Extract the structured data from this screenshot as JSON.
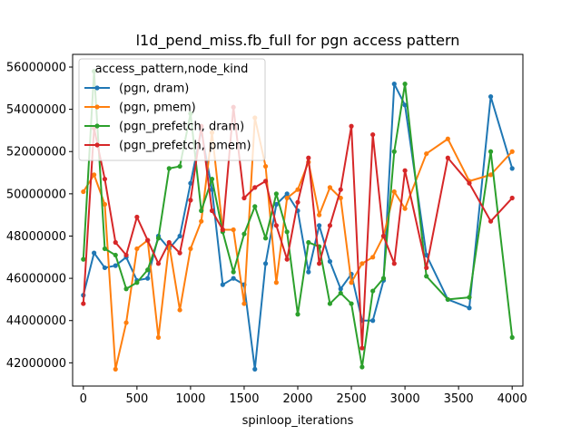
{
  "chart_data": {
    "type": "line",
    "title": "l1d_pend_miss.fb_full for pgn access pattern",
    "xlabel": "spinloop_iterations",
    "ylabel": "",
    "xlim": [
      -100,
      4100
    ],
    "ylim": [
      40900000,
      56600000
    ],
    "xticks": [
      0,
      500,
      1000,
      1500,
      2000,
      2500,
      3000,
      3500,
      4000
    ],
    "yticks": [
      42000000,
      44000000,
      46000000,
      48000000,
      50000000,
      52000000,
      54000000,
      56000000
    ],
    "legend": {
      "title": "access_pattern,node_kind",
      "placement": "upper-left"
    },
    "series": [
      {
        "name": "(pgn, dram)",
        "color": "#1f77b4",
        "x": [
          0,
          100,
          200,
          300,
          400,
          500,
          600,
          700,
          800,
          900,
          1000,
          1100,
          1200,
          1300,
          1400,
          1500,
          1600,
          1700,
          1800,
          1900,
          2000,
          2100,
          2200,
          2300,
          2400,
          2500,
          2600,
          2700,
          2800,
          2900,
          3000,
          3200,
          3400,
          3600,
          3800,
          4000
        ],
        "y": [
          45200000,
          47200000,
          46500000,
          46600000,
          47000000,
          45900000,
          46000000,
          48000000,
          47400000,
          48000000,
          50500000,
          53000000,
          50200000,
          45700000,
          46000000,
          45700000,
          41700000,
          46700000,
          49500000,
          50000000,
          49200000,
          46300000,
          48500000,
          46800000,
          45500000,
          46200000,
          44000000,
          44000000,
          45900000,
          55200000,
          54200000,
          47100000,
          45000000,
          44600000,
          54600000,
          51200000
        ]
      },
      {
        "name": "(pgn, pmem)",
        "color": "#ff7f0e",
        "x": [
          0,
          100,
          200,
          300,
          400,
          500,
          600,
          700,
          800,
          900,
          1000,
          1100,
          1200,
          1300,
          1400,
          1500,
          1600,
          1700,
          1800,
          1900,
          2000,
          2100,
          2200,
          2300,
          2400,
          2500,
          2600,
          2700,
          2800,
          2900,
          3000,
          3200,
          3400,
          3600,
          3800,
          4000
        ],
        "y": [
          50100000,
          50900000,
          49500000,
          41700000,
          43900000,
          47400000,
          47800000,
          43200000,
          47600000,
          44500000,
          47400000,
          48700000,
          52900000,
          48300000,
          48300000,
          44800000,
          53600000,
          51300000,
          45800000,
          49800000,
          50200000,
          51500000,
          49000000,
          50300000,
          49800000,
          45800000,
          46700000,
          47000000,
          48000000,
          50100000,
          49300000,
          51900000,
          52600000,
          50600000,
          50900000,
          52000000
        ]
      },
      {
        "name": "(pgn_prefetch, dram)",
        "color": "#2ca02c",
        "x": [
          0,
          100,
          200,
          300,
          400,
          500,
          600,
          700,
          800,
          900,
          1000,
          1100,
          1200,
          1300,
          1400,
          1500,
          1600,
          1700,
          1800,
          1900,
          2000,
          2100,
          2200,
          2300,
          2400,
          2500,
          2600,
          2700,
          2800,
          2900,
          3000,
          3200,
          3400,
          3600,
          3800,
          4000
        ],
        "y": [
          46900000,
          55800000,
          47400000,
          47100000,
          45500000,
          45800000,
          46400000,
          47900000,
          51200000,
          51300000,
          53800000,
          49200000,
          50700000,
          48200000,
          46300000,
          48100000,
          49400000,
          47900000,
          50000000,
          48200000,
          44300000,
          47700000,
          47500000,
          44800000,
          45300000,
          44800000,
          41800000,
          45400000,
          46000000,
          52000000,
          55200000,
          46100000,
          45000000,
          45100000,
          52000000,
          43200000
        ]
      },
      {
        "name": "(pgn_prefetch, pmem)",
        "color": "#d62728",
        "x": [
          0,
          100,
          200,
          300,
          400,
          500,
          600,
          700,
          800,
          900,
          1000,
          1100,
          1200,
          1300,
          1400,
          1500,
          1600,
          1700,
          1800,
          1900,
          2000,
          2100,
          2200,
          2300,
          2400,
          2500,
          2600,
          2700,
          2800,
          2900,
          3000,
          3200,
          3400,
          3600,
          3800,
          4000
        ],
        "y": [
          44800000,
          53100000,
          50700000,
          47700000,
          47100000,
          48900000,
          47800000,
          46700000,
          47700000,
          47200000,
          49700000,
          53200000,
          49200000,
          48300000,
          54100000,
          49800000,
          50300000,
          50600000,
          48500000,
          46900000,
          49600000,
          51700000,
          46700000,
          48500000,
          50200000,
          53200000,
          42700000,
          52800000,
          48000000,
          46700000,
          51100000,
          46500000,
          51700000,
          50500000,
          48700000,
          49800000
        ]
      }
    ]
  }
}
